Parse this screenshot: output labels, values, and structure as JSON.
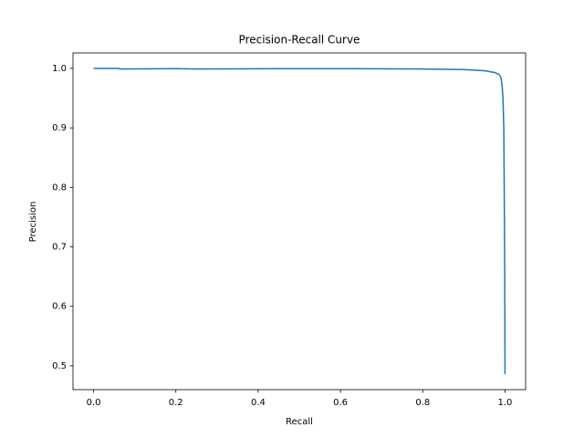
{
  "chart_data": {
    "type": "line",
    "title": "Precision-Recall Curve",
    "x_label": "Recall",
    "y_label": "Precision",
    "series": [
      {
        "color": "#1f77b4",
        "x": [
          0,
          0.06,
          0.065,
          0.2,
          0.25,
          0.45,
          0.6,
          0.8,
          0.9,
          0.95,
          0.975,
          0.985,
          0.99,
          0.993,
          0.995,
          0.997,
          0.998,
          0.999,
          1.0
        ],
        "values": [
          1.0,
          1.0,
          0.999,
          0.9995,
          0.999,
          0.9995,
          0.9995,
          0.999,
          0.998,
          0.996,
          0.993,
          0.99,
          0.985,
          0.97,
          0.95,
          0.9,
          0.8,
          0.7,
          0.486
        ]
      }
    ],
    "xlim": [
      -0.05,
      1.05
    ],
    "ylim": [
      0.46,
      1.026
    ],
    "xticks": [
      {
        "value": 0,
        "label": "0.0"
      },
      0.2,
      0.4,
      0.6,
      0.8,
      {
        "value": 1,
        "label": "1.0"
      }
    ],
    "yticks": [
      0.5,
      0.6,
      0.7,
      0.8,
      0.9,
      {
        "value": 1,
        "label": "1.0"
      }
    ]
  }
}
